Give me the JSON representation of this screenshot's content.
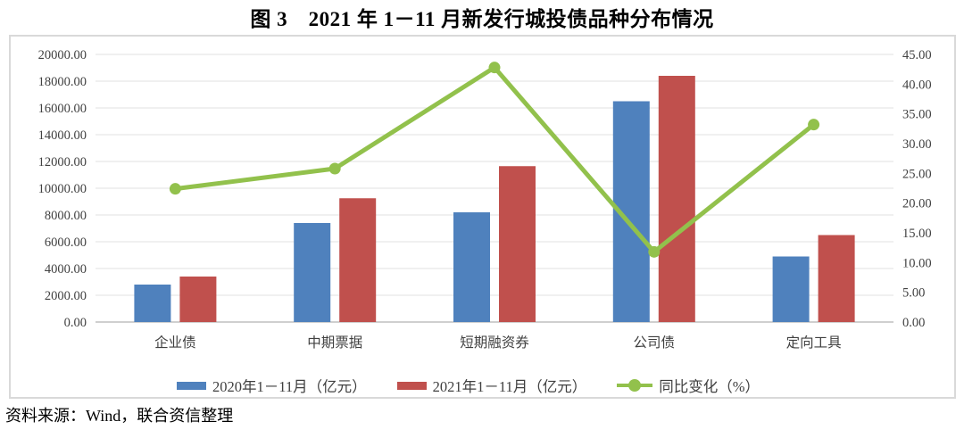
{
  "figure": {
    "title": "图 3　2021 年 1－11 月新发行城投债品种分布情况",
    "source": "资料来源：Wind，联合资信整理"
  },
  "chart_data": {
    "type": "bar",
    "subtype": "grouped-bars-with-line-overlay",
    "categories": [
      "企业债",
      "中期票据",
      "短期融资券",
      "公司债",
      "定向工具"
    ],
    "series": [
      {
        "name": "2020年1－11月（亿元）",
        "type": "bar",
        "axis": "left",
        "color": "#4f81bd",
        "values": [
          2800,
          7400,
          8200,
          16500,
          4900
        ]
      },
      {
        "name": "2021年1－11月（亿元）",
        "type": "bar",
        "axis": "left",
        "color": "#c0504d",
        "values": [
          3400,
          9250,
          11650,
          18400,
          6500
        ]
      },
      {
        "name": "同比变化（%）",
        "type": "line",
        "axis": "right",
        "color": "#92c14c",
        "values": [
          22.4,
          25.8,
          42.8,
          11.8,
          33.2
        ]
      }
    ],
    "left_axis": {
      "min": 0,
      "max": 20000,
      "step": 2000,
      "decimals": 2
    },
    "right_axis": {
      "min": 0,
      "max": 45,
      "step": 5,
      "decimals": 2
    },
    "grid": true,
    "legend_position": "bottom",
    "gridline_color": "#e2e2e2",
    "axis_line_color": "#bfbfbf",
    "label_color": "#404040"
  }
}
